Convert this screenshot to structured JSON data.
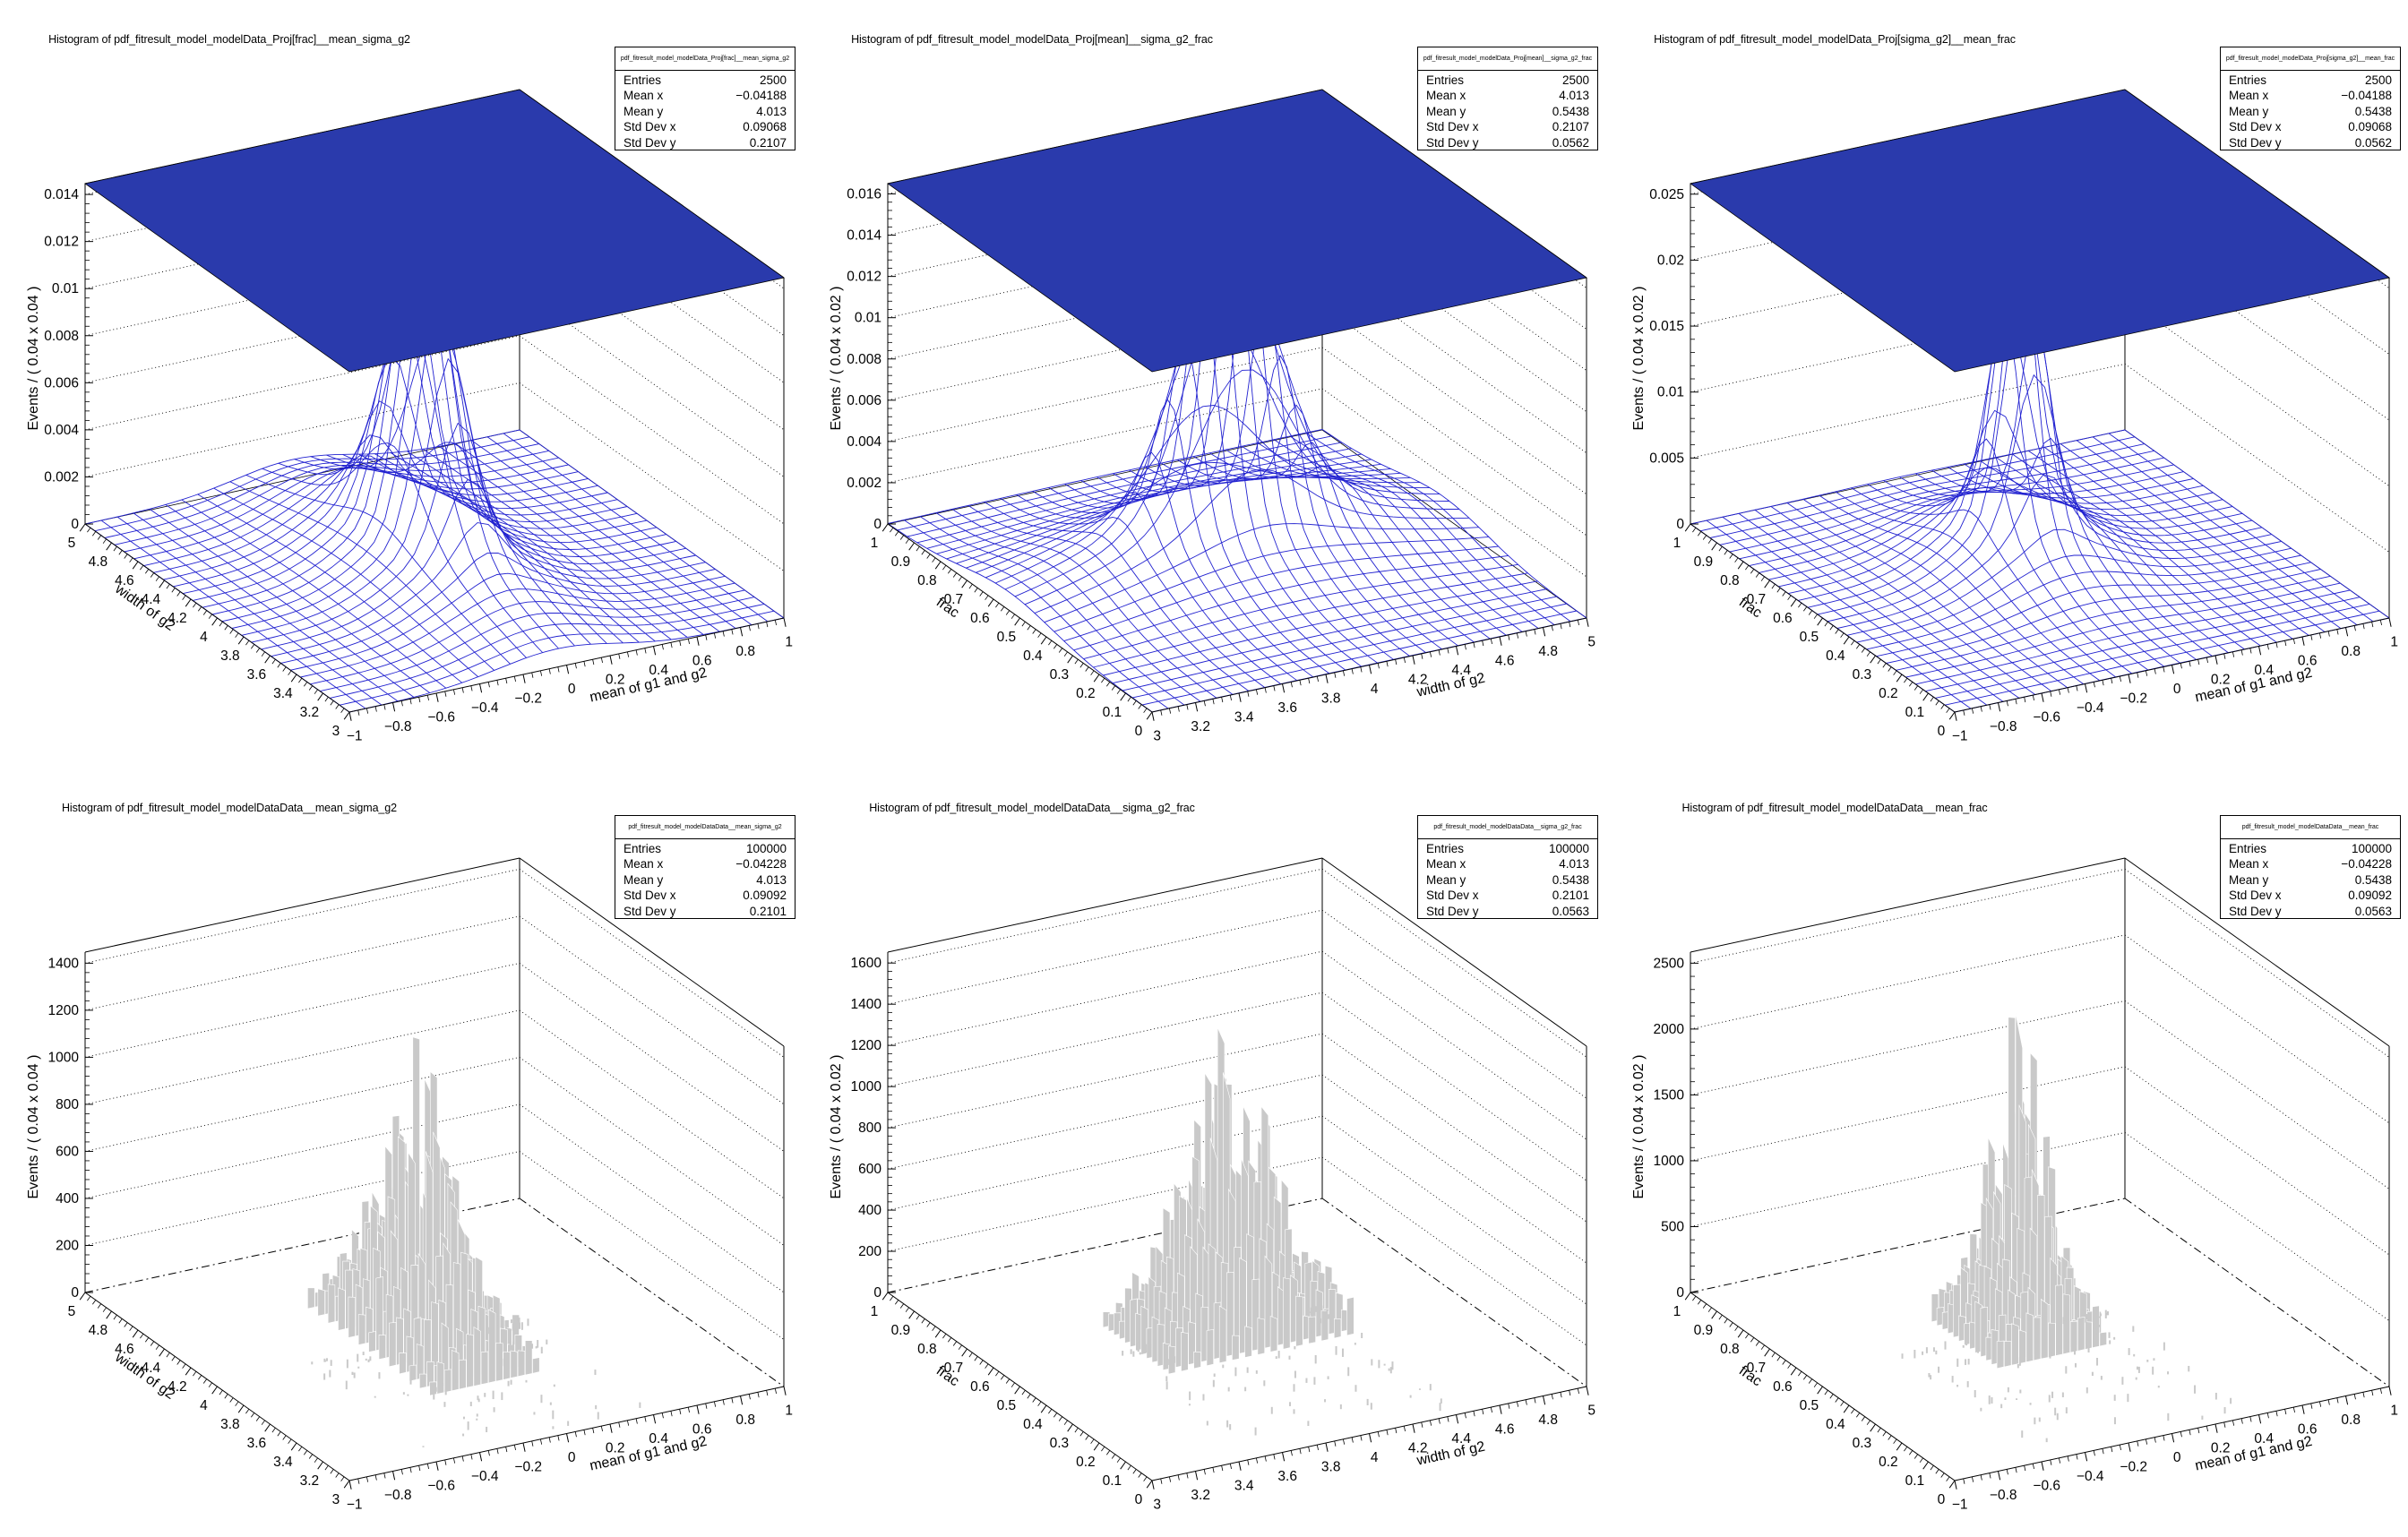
{
  "canvas": {
    "background": "#ffffff",
    "rows": 2,
    "cols": 3
  },
  "colors": {
    "frame": "#000000",
    "mesh_blue": "#2222d0",
    "plane_blue": "#2a3aac",
    "blob_core": "#fdfа6a",
    "blob_yellow": "#f8ee52",
    "blob_orange": "#f0cd43",
    "blob_green": "#96cc53",
    "blob_teal": "#2fadc5",
    "blob_blue": "#3a63c1",
    "spike_gray": "#c9c9c9"
  },
  "chart_data": [
    {
      "type": "surface3d",
      "style": "pdf-surface",
      "title": "Histogram of pdf_fitresult_model_modelData_Proj[frac]__mean_sigma_g2",
      "xlabel": "mean of g1 and g2",
      "xrange": [
        -1,
        1
      ],
      "xticks": [
        "−1",
        "−0.8",
        "−0.6",
        "−0.4",
        "−0.2",
        "0",
        "0.2",
        "0.4",
        "0.6",
        "0.8",
        "1"
      ],
      "ylabel": "width of g2",
      "yrange": [
        3,
        5
      ],
      "yticks": [
        "3",
        "3.2",
        "3.4",
        "3.6",
        "3.8",
        "4",
        "4.2",
        "4.4",
        "4.6",
        "4.8",
        "5"
      ],
      "zlabel": "Events / ( 0.04 x 0.04 )",
      "zticks": [
        "0",
        "0.002",
        "0.004",
        "0.006",
        "0.008",
        "0.01",
        "0.012",
        "0.014"
      ],
      "peak": {
        "x": -0.04188,
        "y": 4.013,
        "sigma_x": 0.09068,
        "sigma_y": 0.2107
      },
      "stats": {
        "name": "pdf_fitresult_model_modelData_Proj[frac]__mean_sigma_g2",
        "rows": [
          {
            "label": "Entries",
            "value": "2500"
          },
          {
            "label": "Mean x",
            "value": "−0.04188"
          },
          {
            "label": "Mean y",
            "value": "4.013"
          },
          {
            "label": "Std Dev x",
            "value": "0.09068"
          },
          {
            "label": "Std Dev y",
            "value": "0.2107"
          }
        ]
      },
      "render": {
        "mode": "pdf",
        "zbox": 0.01446,
        "amp": 0.97,
        "cu": 0.479,
        "cv": 0.5065,
        "su": 0.0453,
        "sv": 0.1054
      }
    },
    {
      "type": "surface3d",
      "style": "pdf-surface",
      "title": "Histogram of pdf_fitresult_model_modelData_Proj[mean]__sigma_g2_frac",
      "xlabel": "width of g2",
      "xrange": [
        3,
        5
      ],
      "xticks": [
        "3",
        "3.2",
        "3.4",
        "3.6",
        "3.8",
        "4",
        "4.2",
        "4.4",
        "4.6",
        "4.8",
        "5"
      ],
      "ylabel": "frac",
      "yrange": [
        0,
        1
      ],
      "yticks": [
        "0",
        "0.1",
        "0.2",
        "0.3",
        "0.4",
        "0.5",
        "0.6",
        "0.7",
        "0.8",
        "0.9",
        "1"
      ],
      "zlabel": "Events / ( 0.04 x 0.02 )",
      "zticks": [
        "0",
        "0.002",
        "0.004",
        "0.006",
        "0.008",
        "0.01",
        "0.012",
        "0.014",
        "0.016"
      ],
      "peak": {
        "x": 4.013,
        "y": 0.5438,
        "sigma_x": 0.2107,
        "sigma_y": 0.0562
      },
      "stats": {
        "name": "pdf_fitresult_model_modelData_Proj[mean]__sigma_g2_frac",
        "rows": [
          {
            "label": "Entries",
            "value": "2500"
          },
          {
            "label": "Mean x",
            "value": "4.013"
          },
          {
            "label": "Mean y",
            "value": "0.5438"
          },
          {
            "label": "Std Dev x",
            "value": "0.2107"
          },
          {
            "label": "Std Dev y",
            "value": "0.0562"
          }
        ]
      },
      "render": {
        "mode": "pdf",
        "zbox": 0.0165,
        "amp": 0.97,
        "cu": 0.5065,
        "cv": 0.5438,
        "su": 0.1054,
        "sv": 0.0562
      }
    },
    {
      "type": "surface3d",
      "style": "pdf-surface",
      "title": "Histogram of pdf_fitresult_model_modelData_Proj[sigma_g2]__mean_frac",
      "xlabel": "mean of g1 and g2",
      "xrange": [
        -1,
        1
      ],
      "xticks": [
        "−1",
        "−0.8",
        "−0.6",
        "−0.4",
        "−0.2",
        "0",
        "0.2",
        "0.4",
        "0.6",
        "0.8",
        "1"
      ],
      "ylabel": "frac",
      "yrange": [
        0,
        1
      ],
      "yticks": [
        "0",
        "0.1",
        "0.2",
        "0.3",
        "0.4",
        "0.5",
        "0.6",
        "0.7",
        "0.8",
        "0.9",
        "1"
      ],
      "zlabel": "Events / ( 0.04 x 0.02 )",
      "zticks": [
        "0",
        "0.005",
        "0.01",
        "0.015",
        "0.02",
        "0.025"
      ],
      "peak": {
        "x": -0.04188,
        "y": 0.5438,
        "sigma_x": 0.09068,
        "sigma_y": 0.0562
      },
      "stats": {
        "name": "pdf_fitresult_model_modelData_Proj[sigma_g2]__mean_frac",
        "rows": [
          {
            "label": "Entries",
            "value": "2500"
          },
          {
            "label": "Mean x",
            "value": "−0.04188"
          },
          {
            "label": "Mean y",
            "value": "0.5438"
          },
          {
            "label": "Std Dev x",
            "value": "0.09068"
          },
          {
            "label": "Std Dev y",
            "value": "0.0562"
          }
        ]
      },
      "render": {
        "mode": "pdf",
        "zbox": 0.0258,
        "amp": 0.96,
        "cu": 0.479,
        "cv": 0.5438,
        "su": 0.0453,
        "sv": 0.0562
      }
    },
    {
      "type": "surface3d",
      "style": "data-histogram",
      "title": "Histogram of pdf_fitresult_model_modelDataData__mean_sigma_g2",
      "xlabel": "mean of g1 and g2",
      "xrange": [
        -1,
        1
      ],
      "xticks": [
        "−1",
        "−0.8",
        "−0.6",
        "−0.4",
        "−0.2",
        "0",
        "0.2",
        "0.4",
        "0.6",
        "0.8",
        "1"
      ],
      "ylabel": "width of g2",
      "yrange": [
        3,
        5
      ],
      "yticks": [
        "3",
        "3.2",
        "3.4",
        "3.6",
        "3.8",
        "4",
        "4.2",
        "4.4",
        "4.6",
        "4.8",
        "5"
      ],
      "zlabel": "Events / ( 0.04 x 0.04 )",
      "zticks": [
        "0",
        "200",
        "400",
        "600",
        "800",
        "1000",
        "1200",
        "1400"
      ],
      "peak": {
        "x": -0.04228,
        "y": 4.013,
        "sigma_x": 0.09092,
        "sigma_y": 0.2101
      },
      "stats": {
        "name": "pdf_fitresult_model_modelDataData__mean_sigma_g2",
        "rows": [
          {
            "label": "Entries",
            "value": "100000"
          },
          {
            "label": "Mean x",
            "value": "−0.04228"
          },
          {
            "label": "Mean y",
            "value": "4.013"
          },
          {
            "label": "Std Dev x",
            "value": "0.09092"
          },
          {
            "label": "Std Dev y",
            "value": "0.2101"
          }
        ]
      },
      "render": {
        "mode": "data",
        "zbox": 1447,
        "amp": 0.86,
        "cu": 0.4789,
        "cv": 0.5065,
        "su": 0.0455,
        "sv": 0.105
      }
    },
    {
      "type": "surface3d",
      "style": "data-histogram",
      "title": "Histogram of pdf_fitresult_model_modelDataData__sigma_g2_frac",
      "xlabel": "width of g2",
      "xrange": [
        3,
        5
      ],
      "xticks": [
        "3",
        "3.2",
        "3.4",
        "3.6",
        "3.8",
        "4",
        "4.2",
        "4.4",
        "4.6",
        "4.8",
        "5"
      ],
      "ylabel": "frac",
      "yrange": [
        0,
        1
      ],
      "yticks": [
        "0",
        "0.1",
        "0.2",
        "0.3",
        "0.4",
        "0.5",
        "0.6",
        "0.7",
        "0.8",
        "0.9",
        "1"
      ],
      "zlabel": "Events / ( 0.04 x 0.02 )",
      "zticks": [
        "0",
        "200",
        "400",
        "600",
        "800",
        "1000",
        "1200",
        "1400",
        "1600"
      ],
      "peak": {
        "x": 4.013,
        "y": 0.5438,
        "sigma_x": 0.2101,
        "sigma_y": 0.0563
      },
      "stats": {
        "name": "pdf_fitresult_model_modelDataData__sigma_g2_frac",
        "rows": [
          {
            "label": "Entries",
            "value": "100000"
          },
          {
            "label": "Mean x",
            "value": "4.013"
          },
          {
            "label": "Mean y",
            "value": "0.5438"
          },
          {
            "label": "Std Dev x",
            "value": "0.2101"
          },
          {
            "label": "Std Dev y",
            "value": "0.0563"
          }
        ]
      },
      "render": {
        "mode": "data",
        "zbox": 1653,
        "amp": 0.9,
        "cu": 0.5065,
        "cv": 0.5438,
        "su": 0.079,
        "sv": 0.0563
      }
    },
    {
      "type": "surface3d",
      "style": "data-histogram",
      "title": "Histogram of pdf_fitresult_model_modelDataData__mean_frac",
      "xlabel": "mean of g1 and g2",
      "xrange": [
        -1,
        1
      ],
      "xticks": [
        "−1",
        "−0.8",
        "−0.6",
        "−0.4",
        "−0.2",
        "0",
        "0.2",
        "0.4",
        "0.6",
        "0.8",
        "1"
      ],
      "ylabel": "frac",
      "yrange": [
        0,
        1
      ],
      "yticks": [
        "0",
        "0.1",
        "0.2",
        "0.3",
        "0.4",
        "0.5",
        "0.6",
        "0.7",
        "0.8",
        "0.9",
        "1"
      ],
      "zlabel": "Events / ( 0.04 x 0.02 )",
      "zticks": [
        "0",
        "500",
        "1000",
        "1500",
        "2000",
        "2500"
      ],
      "peak": {
        "x": -0.04228,
        "y": 0.5438,
        "sigma_x": 0.09092,
        "sigma_y": 0.0563
      },
      "stats": {
        "name": "pdf_fitresult_model_modelDataData__mean_frac",
        "rows": [
          {
            "label": "Entries",
            "value": "100000"
          },
          {
            "label": "Mean x",
            "value": "−0.04228"
          },
          {
            "label": "Mean y",
            "value": "0.5438"
          },
          {
            "label": "Std Dev x",
            "value": "0.09092"
          },
          {
            "label": "Std Dev y",
            "value": "0.0563"
          }
        ]
      },
      "render": {
        "mode": "data",
        "zbox": 2584,
        "amp": 0.87,
        "cu": 0.4789,
        "cv": 0.5438,
        "su": 0.0455,
        "sv": 0.0563
      }
    }
  ]
}
